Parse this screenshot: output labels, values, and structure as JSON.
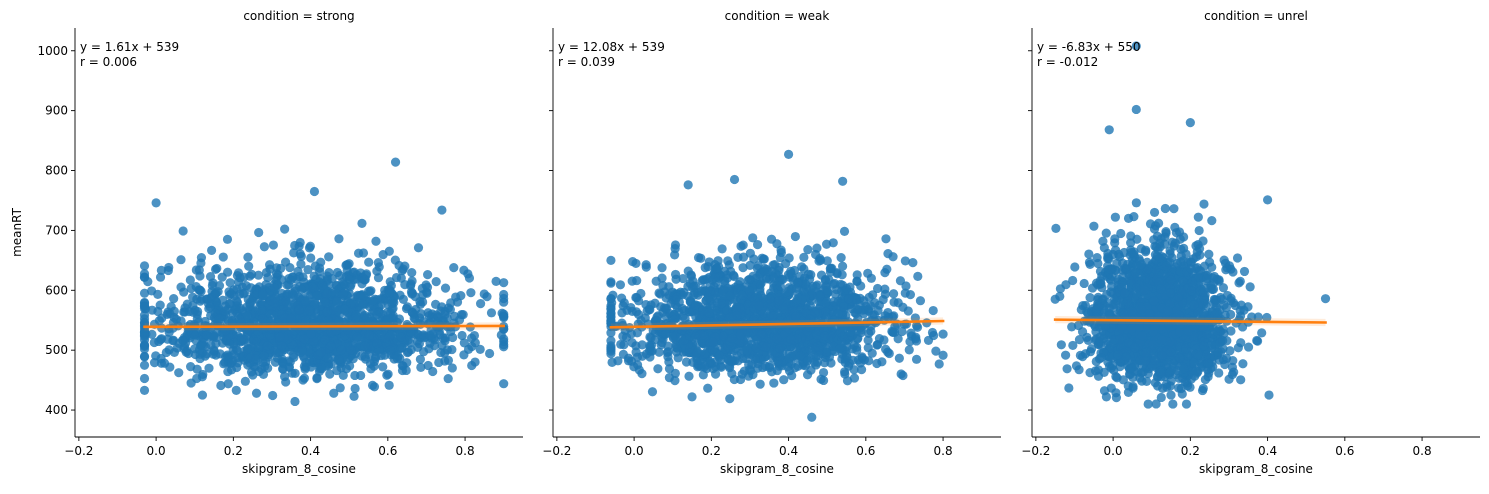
{
  "chart_data": {
    "type": "scatter",
    "layout": "facet-grid-3-columns-shared-y",
    "ylabel": "meanRT",
    "ylim": [
      355,
      1038
    ],
    "yticks": [
      400,
      500,
      600,
      700,
      800,
      900,
      1000
    ],
    "xlim": [
      -0.21,
      0.95
    ],
    "xticks": [
      -0.2,
      0.0,
      0.2,
      0.4,
      0.6,
      0.8
    ],
    "tick_labels_x": [
      "−0.2",
      "0.0",
      "0.2",
      "0.4",
      "0.6",
      "0.8"
    ],
    "tick_labels_y": [
      "400",
      "500",
      "600",
      "700",
      "800",
      "900",
      "1000"
    ],
    "point_color": "#1f77b4",
    "fit_color": "#ff7f0e",
    "grid": false,
    "panels": [
      {
        "title": "condition = strong",
        "xlabel": "skipgram_8_cosine",
        "annotation": [
          "y = 1.61x + 539",
          "r = 0.006"
        ],
        "fit": {
          "slope": 1.61,
          "intercept": 539,
          "x_range": [
            -0.03,
            0.9
          ]
        },
        "scatter_summary": {
          "x_range": [
            -0.03,
            0.9
          ],
          "x_center": 0.4,
          "x_sd": 0.2,
          "y_center": 540,
          "y_sd": 45
        },
        "notable_points": [
          [
            0.0,
            746
          ],
          [
            0.62,
            814
          ],
          [
            0.41,
            765
          ],
          [
            0.74,
            734
          ],
          [
            0.07,
            699
          ],
          [
            0.12,
            425
          ],
          [
            0.9,
            444
          ],
          [
            0.26,
            428
          ],
          [
            0.46,
            428
          ]
        ]
      },
      {
        "title": "condition = weak",
        "xlabel": "skipgram_8_cosine",
        "annotation": [
          "y = 12.08x + 539",
          "r = 0.039"
        ],
        "fit": {
          "slope": 12.08,
          "intercept": 539,
          "x_range": [
            -0.06,
            0.8
          ]
        },
        "scatter_summary": {
          "x_range": [
            -0.06,
            0.8
          ],
          "x_center": 0.33,
          "x_sd": 0.17,
          "y_center": 543,
          "y_sd": 45
        },
        "notable_points": [
          [
            0.4,
            827
          ],
          [
            0.26,
            785
          ],
          [
            0.54,
            782
          ],
          [
            0.14,
            776
          ],
          [
            0.46,
            388
          ],
          [
            0.15,
            422
          ],
          [
            -0.06,
            650
          ],
          [
            0.79,
            477
          ]
        ]
      },
      {
        "title": "condition = unrel",
        "xlabel": "skipgram_8_cosine",
        "annotation": [
          "y = -6.83x + 550",
          "r = -0.012"
        ],
        "fit": {
          "slope": -6.83,
          "intercept": 550,
          "x_range": [
            -0.15,
            0.55
          ]
        },
        "scatter_summary": {
          "x_range": [
            -0.15,
            0.55
          ],
          "x_center": 0.12,
          "x_sd": 0.09,
          "y_center": 548,
          "y_sd": 55
        },
        "notable_points": [
          [
            0.06,
            1008
          ],
          [
            0.06,
            902
          ],
          [
            -0.01,
            868
          ],
          [
            0.2,
            880
          ],
          [
            0.4,
            751
          ],
          [
            0.19,
            410
          ],
          [
            -0.15,
            585
          ],
          [
            0.55,
            586
          ]
        ]
      }
    ]
  }
}
